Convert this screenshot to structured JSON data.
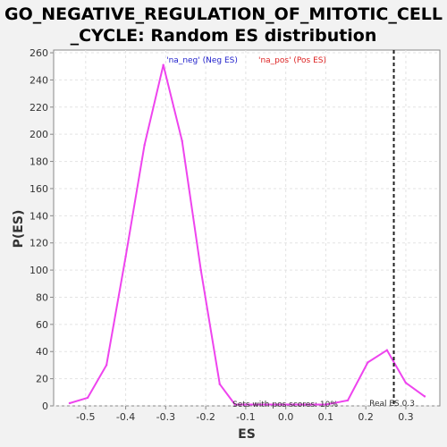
{
  "chart_data": {
    "type": "line",
    "title_line1": "GO_NEGATIVE_REGULATION_OF_MITOTIC_CELL",
    "title_line2": "_CYCLE: Random ES distribution",
    "xlabel": "ES",
    "ylabel": "P(ES)",
    "xlim": [
      -0.58,
      0.385
    ],
    "ylim": [
      0,
      262
    ],
    "xticks": [
      -0.5,
      -0.4,
      -0.3,
      -0.2,
      -0.1,
      0.0,
      0.1,
      0.2,
      0.3
    ],
    "xtick_labels": [
      "-0.5",
      "-0.4",
      "-0.3",
      "-0.2",
      "-0.1",
      "0.0",
      "0.1",
      "0.2",
      "0.3"
    ],
    "yticks": [
      0,
      20,
      40,
      60,
      80,
      100,
      120,
      140,
      160,
      180,
      200,
      220,
      240,
      260
    ],
    "grid": true,
    "series": [
      {
        "name": "",
        "color": "#ee44ee",
        "x": [
          -0.54,
          -0.495,
          -0.448,
          -0.4,
          -0.353,
          -0.306,
          -0.259,
          -0.212,
          -0.165,
          -0.127,
          0.1,
          0.155,
          0.205,
          0.253,
          0.3,
          0.347
        ],
        "y": [
          2,
          6,
          30,
          110,
          192,
          251,
          195,
          100,
          16,
          1,
          1,
          4,
          32,
          41,
          17,
          7
        ]
      }
    ],
    "legend": {
      "neg_label": "'na_neg' (Neg ES)",
      "neg_color": "#2222cc",
      "pos_label": "'na_pos' (Pos ES)",
      "pos_color": "#dd2222"
    },
    "real_es": {
      "value": 0.27,
      "label": "Real ES 0.3"
    },
    "annotation": "Sets with pos scores: 10%"
  }
}
